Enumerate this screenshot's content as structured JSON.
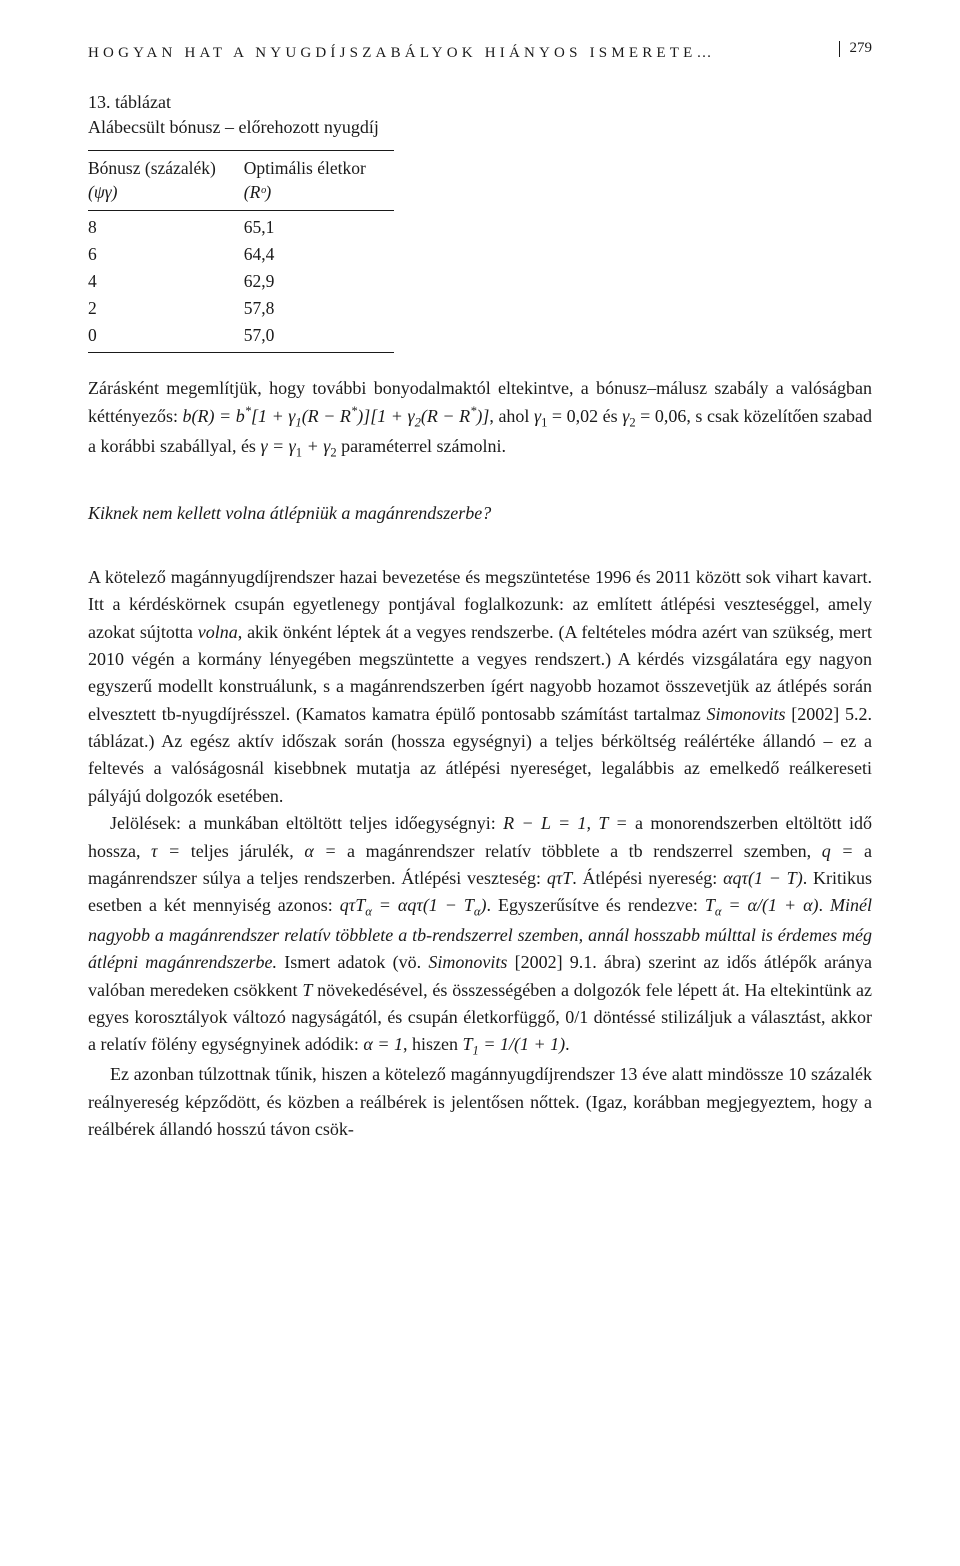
{
  "header": {
    "running_title": "HOGYAN HAT A NYUGDÍJSZABÁLYOK HIÁNYOS ISMERETE…",
    "page_number": "279"
  },
  "table": {
    "caption_line1": "13. táblázat",
    "caption_line2": "Alábecsült bónusz – előrehozott nyugdíj",
    "columns": [
      {
        "header_line1": "Bónusz (százalék)",
        "header_line2": "(ψγ)"
      },
      {
        "header_line1": "Optimális életkor",
        "header_line2": "(Rᵒ)"
      }
    ],
    "rows": [
      [
        "8",
        "65,1"
      ],
      [
        "6",
        "64,4"
      ],
      [
        "4",
        "62,9"
      ],
      [
        "2",
        "57,8"
      ],
      [
        "0",
        "57,0"
      ]
    ]
  },
  "p1_a": "Zárásként megemlítjük, hogy további bonyodalmaktól eltekintve, a bónusz–málusz szabály a valóságban kéttényezős: ",
  "p1_formula": "b(R) = b*[1 + γ₁(R − R*)][1 + γ₂(R − R*)]",
  "p1_b": ", ahol γ₁ = 0,02 és γ₂ = 0,06, s csak közelítően szabad a korábbi szabállyal, és γ = γ₁ + γ₂ paraméterrel számolni.",
  "section_question": "Kiknek nem kellett volna átlépniük a magánrendszerbe?",
  "p2": "A kötelező magánnyugdíjrendszer hazai bevezetése és megszüntetése 1996 és 2011 között sok vihart kavart. Itt a kérdéskörnek csupán egyetlenegy pontjával foglalkozunk: az említett átlépési veszteséggel, amely azokat sújtotta ",
  "p2_i1": "volna",
  "p2b": ", akik önként léptek át a vegyes rendszerbe. (A feltételes módra azért van szükség, mert 2010 végén a kormány lényegében megszüntette a vegyes rendszert.) A kérdés vizsgálatára egy nagyon egyszerű modellt konstruálunk, s a magánrendszerben ígért nagyobb hozamot összevetjük az átlépés során elvesztett tb-nyugdíjrésszel. (Kamatos kamatra épülő pontosabb számítást tartalmaz ",
  "p2_i2": "Simonovits",
  "p2c": " [2002] 5.2. táblázat.) Az egész aktív időszak során (hossza egységnyi) a teljes bérköltség reálértéke állandó – ez a feltevés a valóságosnál kisebbnek mutatja az átlépési nyereséget, legalábbis az emelkedő reálkereseti pályájú dolgozók esetében.",
  "p3a": "Jelölések: a munkában eltöltött teljes időegységnyi: ",
  "p3_f1": "R − L = 1, T = ",
  "p3b": "a monorendszerben eltöltött idő hossza, ",
  "p3_f2": "τ = ",
  "p3c": "teljes járulék, ",
  "p3_f3": "α = ",
  "p3d": "a magánrendszer relatív többlete a tb rendszerrel szemben, ",
  "p3_f4": "q = ",
  "p3e": "a magánrendszer súlya a teljes rendszerben. Átlépési veszteség: ",
  "p3_f5": "qτT",
  "p3f": ". Átlépési nyereség: ",
  "p3_f6": "αqτ(1 − T)",
  "p3g": ". Kritikus esetben a két mennyiség azonos: ",
  "p3_f7": "qτTα = αqτ(1 − Tα)",
  "p3h": ". Egyszerűsítve és rendezve: ",
  "p3_f8": "Tα = α/(1 + α)",
  "p3i": ". ",
  "p3_ital": "Minél nagyobb a magánrendszer relatív többlete a tb-rendszerrel szemben, annál hosszabb múlttal is érdemes még átlépni magánrendszerbe.",
  "p3j": " Ismert adatok (vö. ",
  "p3_i2": "Simonovits",
  "p3k": " [2002] 9.1. ábra) szerint az idős átlépők aránya valóban meredeken csökkent ",
  "p3_i3": "T",
  "p3l": " növekedésével, és összességében a dolgozók fele lépett át. Ha eltekintünk az egyes korosztályok változó nagyságától, és csupán életkorfüggő, 0/1 döntéssé stilizáljuk a választást, akkor a relatív fölény egységnyinek adódik: ",
  "p3_f9": "α = 1",
  "p3m": ", hiszen ",
  "p3_f10": "T₁ = 1/(1 + 1)",
  "p3n": ".",
  "p4": "Ez azonban túlzottnak tűnik, hiszen a kötelező magánnyugdíjrendszer 13 éve alatt mindössze 10 százalék reálnyereség képződött, és közben a reálbérek is jelentősen nőttek. (Igaz, korábban megjegyeztem, hogy a reálbérek állandó hosszú távon csök-"
}
